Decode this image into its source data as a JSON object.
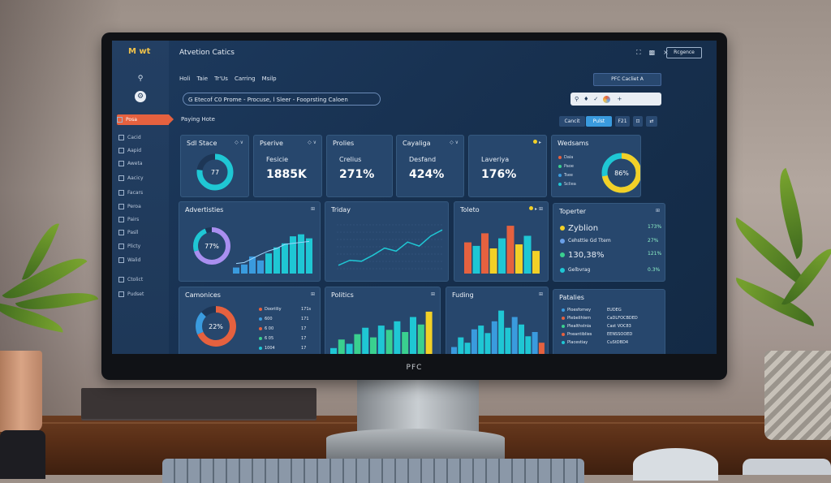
{
  "colors": {
    "accent_orange": "#e5613f",
    "teal": "#1fc7d4",
    "blue": "#3a9bde",
    "yellow": "#f2d027",
    "green": "#3ad08f"
  },
  "app": {
    "logo": "M wt",
    "title": "Atvetion Catics"
  },
  "header": {
    "icons": [
      "maximize-icon",
      "lock-icon",
      "close-icon"
    ],
    "button": "Rcgence"
  },
  "sidebar": {
    "icons": [
      "search-icon",
      "settings-icon"
    ],
    "items": [
      {
        "label": "Posa",
        "active": true
      },
      {
        "label": "Cacid"
      },
      {
        "label": "Aapid"
      },
      {
        "label": "Aweta"
      },
      {
        "label": "Aacicy"
      },
      {
        "label": "Facars"
      },
      {
        "label": "Peroa"
      },
      {
        "label": "Pairs"
      },
      {
        "label": "Pasll"
      },
      {
        "label": "Plicty"
      },
      {
        "label": "Walid"
      },
      {
        "label": "Ctolict"
      },
      {
        "label": "Pudset"
      }
    ]
  },
  "nav": {
    "items": [
      "Holi",
      "Taie",
      "Tr'Us",
      "Carring",
      "Msilp"
    ]
  },
  "top_chip": "PFC Cacliet A",
  "search": {
    "value": "G Etecof C0 Prome - Procuse, l Sleer - Fooprsting Caloen"
  },
  "toolbar": {
    "icons": [
      "search-icon",
      "pin-icon",
      "check-icon",
      "color-wheel-icon",
      "plus-icon"
    ]
  },
  "crumb": "Paying Hote",
  "buttons": {
    "cancel": "Cancit",
    "primary": "Pulst",
    "b3": "F21",
    "b4": "⊡",
    "b5": "⇄"
  },
  "kpis": [
    {
      "title": "Sdl Stace",
      "center": "77"
    },
    {
      "title": "Pserive",
      "sub": "Fesicie",
      "value": "1885K"
    },
    {
      "title": "Prolies",
      "sub": "Crelius",
      "value": "271%"
    },
    {
      "title": "Cayaliga",
      "sub": "Desfand",
      "value": "424%"
    },
    {
      "title": "",
      "sub": "Laveriya",
      "value": "176%"
    },
    {
      "title": "Wedsams",
      "center": "86%",
      "legend": [
        "Daia",
        "Paoe",
        "Tsee",
        "Scliea"
      ]
    }
  ],
  "row2": {
    "advertisers": {
      "title": "Advertisties",
      "center": "77%",
      "bars": [
        12,
        18,
        34,
        26,
        40,
        52,
        60,
        74,
        78,
        70
      ],
      "lines": [
        20,
        22,
        30,
        38,
        45,
        50,
        58,
        60,
        62,
        64
      ]
    },
    "triday": {
      "title": "Triday",
      "points": [
        5,
        10,
        9,
        15,
        22,
        19,
        28,
        24,
        34,
        40
      ]
    },
    "toleto": {
      "title": "Toleto",
      "bars": [
        {
          "v": 62,
          "c": "red"
        },
        {
          "v": 55,
          "c": "teal"
        },
        {
          "v": 80,
          "c": "red"
        },
        {
          "v": 50,
          "c": "yellow"
        },
        {
          "v": 70,
          "c": "teal"
        },
        {
          "v": 95,
          "c": "red"
        },
        {
          "v": 58,
          "c": "yellow"
        },
        {
          "v": 75,
          "c": "teal"
        },
        {
          "v": 45,
          "c": "yellow"
        }
      ]
    },
    "toporter": {
      "title": "Toperter",
      "rows": [
        {
          "label": "Zyblion",
          "pct": "173%",
          "big": true
        },
        {
          "label": "Cehsttie Gd Ttem",
          "pct": "27%"
        },
        {
          "label": "130,38%",
          "pct": "121%",
          "big": true
        },
        {
          "label": "Gelbvrag",
          "pct": "0.3%"
        }
      ]
    }
  },
  "row3": {
    "camonices": {
      "title": "Camonices",
      "center": "22%",
      "rows": [
        {
          "label": "Dooriiliy",
          "val": "171s"
        },
        {
          "label": "600",
          "val": "171"
        },
        {
          "label": "6 00",
          "val": "17"
        },
        {
          "label": "6 05",
          "val": "17"
        },
        {
          "label": "1004",
          "val": "17"
        }
      ]
    },
    "politics": {
      "title": "Politics",
      "bars": [
        20,
        36,
        28,
        46,
        58,
        40,
        62,
        54,
        70,
        50,
        78,
        64,
        88
      ]
    },
    "fuding": {
      "title": "Fuding",
      "bars": [
        22,
        40,
        30,
        55,
        62,
        48,
        70,
        90,
        58,
        78,
        64,
        42,
        50,
        30
      ]
    },
    "patalies": {
      "title": "Patalies",
      "rows": [
        {
          "a": "Ploesforney",
          "b": "EUDEG"
        },
        {
          "a": "Plebelihlem",
          "b": "CaDLFOCBDED"
        },
        {
          "a": "Plealthstnia",
          "b": "Cast VOC83"
        },
        {
          "a": "Pneantiblies",
          "b": "EENSSOOED"
        },
        {
          "a": "Placestiay",
          "b": "CuStDBD4"
        }
      ]
    }
  },
  "monitor_brand": "PFC"
}
